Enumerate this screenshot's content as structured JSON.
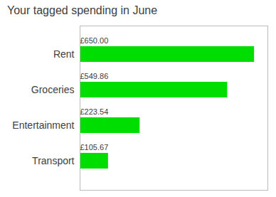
{
  "chart_data": {
    "type": "bar",
    "orientation": "horizontal",
    "title": "Your tagged spending in June",
    "categories": [
      "Rent",
      "Groceries",
      "Entertainment",
      "Transport"
    ],
    "values": [
      650.0,
      549.86,
      223.54,
      105.67
    ],
    "value_labels": [
      "£650.00",
      "£549.86",
      "£223.54",
      "£105.67"
    ],
    "color": "#00dd00",
    "xlim": [
      0,
      700
    ],
    "grid": false,
    "data_labels": true,
    "tick_labels": "y"
  }
}
